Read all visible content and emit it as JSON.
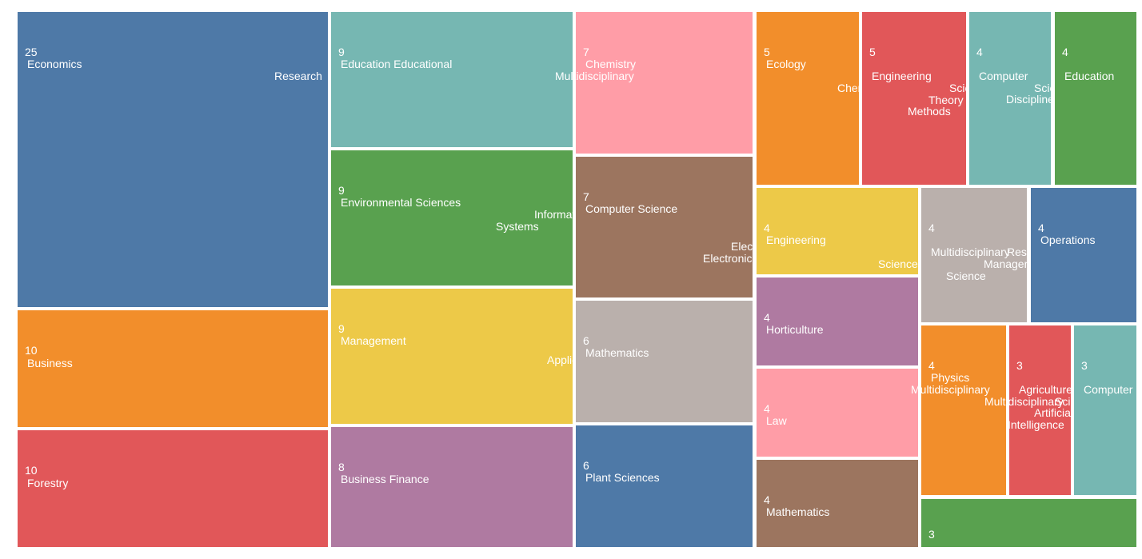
{
  "chart_data": {
    "type": "treemap",
    "title": "",
    "colors": {
      "blue": "#4e79a7",
      "orange": "#f28e2b",
      "red": "#e15759",
      "teal": "#76b7b2",
      "green": "#59a14f",
      "yellow": "#edc948",
      "purple": "#af7aa1",
      "pink": "#ff9da7",
      "brown": "#9c755f",
      "gray": "#bab0ac"
    },
    "items": [
      {
        "value": 25,
        "lines": [
          "Economics",
          "Research"
        ],
        "color": "#4e79a7"
      },
      {
        "value": 10,
        "lines": [
          "Business"
        ],
        "color": "#f28e2b"
      },
      {
        "value": 10,
        "lines": [
          "Forestry"
        ],
        "color": "#e15759"
      },
      {
        "value": 9,
        "lines": [
          "Education Educational"
        ],
        "color": "#76b7b2"
      },
      {
        "value": 9,
        "lines": [
          "Environmental Sciences",
          "Information",
          "Systems"
        ],
        "color": "#59a14f"
      },
      {
        "value": 9,
        "lines": [
          "Management",
          "Applied"
        ],
        "color": "#edc948"
      },
      {
        "value": 8,
        "lines": [
          "Business Finance"
        ],
        "color": "#af7aa1"
      },
      {
        "value": 7,
        "lines": [
          "Chemistry",
          "Multidisciplinary"
        ],
        "color": "#ff9da7"
      },
      {
        "value": 7,
        "lines": [
          "Computer Science",
          "Electrical",
          "Electronic"
        ],
        "color": "#9c755f"
      },
      {
        "value": 6,
        "lines": [
          "Mathematics"
        ],
        "color": "#bab0ac"
      },
      {
        "value": 6,
        "lines": [
          "Plant Sciences"
        ],
        "color": "#4e79a7"
      },
      {
        "value": 5,
        "lines": [
          "Ecology",
          "Chemical"
        ],
        "color": "#f28e2b"
      },
      {
        "value": 5,
        "lines": [
          "Engineering",
          "Science",
          "Theory",
          "Methods"
        ],
        "color": "#e15759"
      },
      {
        "value": 4,
        "lines": [
          "Computer",
          "Scientific",
          "Disciplines"
        ],
        "color": "#76b7b2"
      },
      {
        "value": 4,
        "lines": [
          "Education"
        ],
        "color": "#59a14f"
      },
      {
        "value": 4,
        "lines": [
          "Engineering",
          "Sciences"
        ],
        "color": "#edc948"
      },
      {
        "value": 4,
        "lines": [
          "Multidisciplinary",
          "Research",
          "Management",
          "Science"
        ],
        "color": "#bab0ac"
      },
      {
        "value": 4,
        "lines": [
          "Operations"
        ],
        "color": "#4e79a7"
      },
      {
        "value": 4,
        "lines": [
          "Horticulture"
        ],
        "color": "#af7aa1"
      },
      {
        "value": 4,
        "lines": [
          "Law"
        ],
        "color": "#ff9da7"
      },
      {
        "value": 4,
        "lines": [
          "Mathematics"
        ],
        "color": "#9c755f"
      },
      {
        "value": 4,
        "lines": [
          "Physics",
          "Multidisciplinary"
        ],
        "color": "#f28e2b"
      },
      {
        "value": 3,
        "lines": [
          "Agriculture",
          "Multidisciplinary",
          "Science",
          "Artificial",
          "Intelligence"
        ],
        "color": "#e15759"
      },
      {
        "value": 3,
        "lines": [
          "Computer"
        ],
        "color": "#76b7b2"
      },
      {
        "value": 3,
        "lines": [],
        "color": "#59a14f"
      }
    ]
  }
}
